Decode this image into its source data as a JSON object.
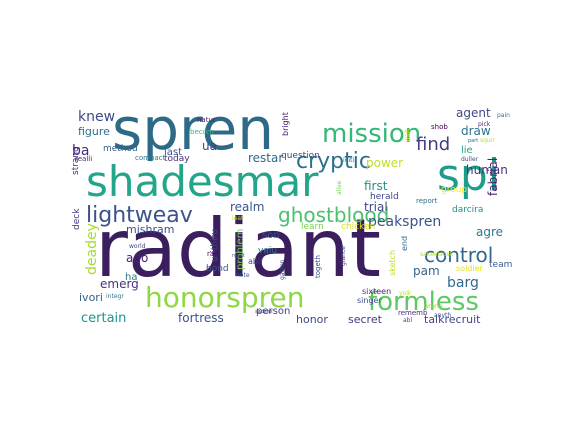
{
  "words": [
    {
      "text": "radiant",
      "color": "#3b1e5e"
    },
    {
      "text": "spren",
      "color": "#2c6a87"
    },
    {
      "text": "shadesmar",
      "color": "#23a58a"
    },
    {
      "text": "spi",
      "color": "#1f9c89"
    },
    {
      "text": "honorspren",
      "color": "#8fd744"
    },
    {
      "text": "formless",
      "color": "#5ec962"
    },
    {
      "text": "mission",
      "color": "#35b779"
    },
    {
      "text": "cryptic",
      "color": "#2c708e"
    },
    {
      "text": "lightweav",
      "color": "#3b528b"
    },
    {
      "text": "ghostblood",
      "color": "#4ac16d"
    },
    {
      "text": "control",
      "color": "#31688e"
    },
    {
      "text": "find",
      "color": "#433e85"
    },
    {
      "text": "peakspren",
      "color": "#3b528b"
    },
    {
      "text": "knew",
      "color": "#3e4a89"
    },
    {
      "text": "ba",
      "color": "#472d7b"
    },
    {
      "text": "ua",
      "color": "#414487"
    },
    {
      "text": "restar",
      "color": "#31688e"
    },
    {
      "text": "realm",
      "color": "#3b528b"
    },
    {
      "text": "power",
      "color": "#bddf26"
    },
    {
      "text": "first",
      "color": "#21918c"
    },
    {
      "text": "trial",
      "color": "#404688"
    },
    {
      "text": "human",
      "color": "#46327e"
    },
    {
      "text": "agre",
      "color": "#2a788e"
    },
    {
      "text": "agent",
      "color": "#3e4989"
    },
    {
      "text": "draw",
      "color": "#2c728e"
    },
    {
      "text": "lie",
      "color": "#20a386"
    },
    {
      "text": "figure",
      "color": "#2e6e8e"
    },
    {
      "text": "method",
      "color": "#33638d"
    },
    {
      "text": "last",
      "color": "#39568c"
    },
    {
      "text": "today",
      "color": "#46307e"
    },
    {
      "text": "deadey",
      "color": "#a5db36"
    },
    {
      "text": "ado",
      "color": "#482576"
    },
    {
      "text": "emerg",
      "color": "#46327e"
    },
    {
      "text": "ha",
      "color": "#2a788e"
    },
    {
      "text": "mishram",
      "color": "#3b528b"
    },
    {
      "text": "ivori",
      "color": "#355f8d"
    },
    {
      "text": "certain",
      "color": "#20938c"
    },
    {
      "text": "fortress",
      "color": "#3b528b"
    },
    {
      "text": "honor",
      "color": "#3e4a89"
    },
    {
      "text": "person",
      "color": "#433e85"
    },
    {
      "text": "secret",
      "color": "#443983"
    },
    {
      "text": "talkrecruit",
      "color": "#414487"
    },
    {
      "text": "pam",
      "color": "#33638d"
    },
    {
      "text": "barg",
      "color": "#31688e"
    },
    {
      "text": "fabrial",
      "color": "#482475"
    },
    {
      "text": "deck",
      "color": "#443a83"
    },
    {
      "text": "strang",
      "color": "#46337f"
    },
    {
      "text": "realli",
      "color": "#482878"
    },
    {
      "text": "compact",
      "color": "#2a788e"
    },
    {
      "text": "question",
      "color": "#3e4989"
    },
    {
      "text": "bright",
      "color": "#481d6f"
    },
    {
      "text": "becom",
      "color": "#35b779"
    },
    {
      "text": "natur",
      "color": "#482677"
    },
    {
      "text": "herald",
      "color": "#3f4788"
    },
    {
      "text": "group",
      "color": "#fde725"
    },
    {
      "text": "darcira",
      "color": "#21918c"
    },
    {
      "text": "team",
      "color": "#355f8d"
    },
    {
      "text": "soldier",
      "color": "#dfe318"
    },
    {
      "text": "end",
      "color": "#2d708e"
    },
    {
      "text": "son",
      "color": "#3b528b"
    },
    {
      "text": "vaiu",
      "color": "#2e6f8e"
    },
    {
      "text": "learn",
      "color": "#7ad151"
    },
    {
      "text": "chicken",
      "color": "#d8e219"
    },
    {
      "text": "problem",
      "color": "#7ad151"
    },
    {
      "text": "urithiru",
      "color": "#3e4a89"
    },
    {
      "text": "bond",
      "color": "#3b528b"
    },
    {
      "text": "abil",
      "color": "#3e4989"
    },
    {
      "text": "rail",
      "color": "#440154"
    },
    {
      "text": "sixteen",
      "color": "#482677"
    },
    {
      "text": "sketch",
      "color": "#bddf26"
    },
    {
      "text": "singer",
      "color": "#3e4989"
    },
    {
      "text": "rememb",
      "color": "#472d7b"
    },
    {
      "text": "anyth",
      "color": "#3b528b"
    },
    {
      "text": "report",
      "color": "#2c728e"
    },
    {
      "text": "shob",
      "color": "#440154"
    },
    {
      "text": "pain",
      "color": "#2a788e"
    },
    {
      "text": "pick",
      "color": "#482576"
    },
    {
      "text": "part",
      "color": "#33638d"
    },
    {
      "text": "world",
      "color": "#3e4989"
    },
    {
      "text": "integr",
      "color": "#2a788e"
    },
    {
      "text": "abl",
      "color": "#414487"
    },
    {
      "text": "wrong",
      "color": "#a0da39"
    },
    {
      "text": "yolk",
      "color": "#bddf26"
    },
    {
      "text": "note",
      "color": "#355f8d"
    },
    {
      "text": "initi",
      "color": "#2e6e8e"
    },
    {
      "text": "gaston",
      "color": "#3e4989"
    },
    {
      "text": "togeth",
      "color": "#3e4989"
    },
    {
      "text": "sadeas",
      "color": "#3e4989"
    },
    {
      "text": "alive",
      "color": "#7ad151"
    },
    {
      "text": "duller",
      "color": "#3e4989"
    },
    {
      "text": "glance",
      "color": "#3e4989"
    },
    {
      "text": "squir",
      "color": "#bddf26"
    },
    {
      "text": "wait",
      "color": "#bddf26"
    },
    {
      "text": "sakeelaosk",
      "color": "#b5de2b"
    },
    {
      "text": "roast",
      "color": "#3e4989"
    },
    {
      "text": "leat",
      "color": "#bddf26"
    }
  ]
}
